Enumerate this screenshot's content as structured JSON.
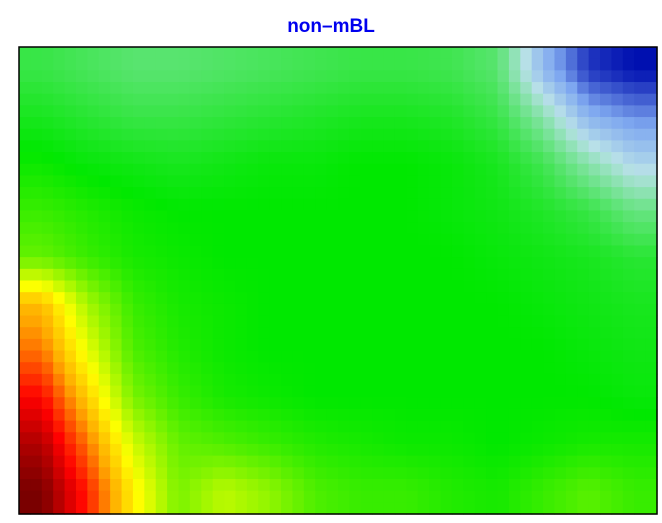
{
  "chart_data": {
    "type": "heatmap",
    "title": "non–mBL",
    "xlabel": "",
    "ylabel": "",
    "grid": false,
    "legend": "none",
    "colormap": {
      "name": "value-scale",
      "stops": [
        {
          "v": 0.0,
          "color": "#7a0000"
        },
        {
          "v": 0.1,
          "color": "#ff0000"
        },
        {
          "v": 0.22,
          "color": "#ffaa00"
        },
        {
          "v": 0.32,
          "color": "#ffff00"
        },
        {
          "v": 0.55,
          "color": "#00e800"
        },
        {
          "v": 0.78,
          "color": "#b8e0e8"
        },
        {
          "v": 0.88,
          "color": "#7fa8f0"
        },
        {
          "v": 1.0,
          "color": "#0010b0"
        }
      ]
    },
    "rows": 10,
    "cols": 14,
    "values": [
      [
        0.62,
        0.64,
        0.66,
        0.66,
        0.65,
        0.64,
        0.63,
        0.62,
        0.62,
        0.63,
        0.66,
        0.85,
        0.97,
        1.0
      ],
      [
        0.58,
        0.6,
        0.62,
        0.62,
        0.61,
        0.6,
        0.59,
        0.58,
        0.58,
        0.59,
        0.62,
        0.72,
        0.86,
        0.9
      ],
      [
        0.54,
        0.56,
        0.57,
        0.58,
        0.57,
        0.56,
        0.56,
        0.55,
        0.55,
        0.56,
        0.58,
        0.63,
        0.72,
        0.8
      ],
      [
        0.5,
        0.52,
        0.54,
        0.55,
        0.55,
        0.55,
        0.55,
        0.55,
        0.55,
        0.56,
        0.57,
        0.59,
        0.62,
        0.68
      ],
      [
        0.46,
        0.5,
        0.53,
        0.54,
        0.55,
        0.55,
        0.55,
        0.55,
        0.55,
        0.55,
        0.56,
        0.57,
        0.58,
        0.6
      ],
      [
        0.24,
        0.4,
        0.5,
        0.53,
        0.54,
        0.55,
        0.55,
        0.55,
        0.55,
        0.55,
        0.55,
        0.56,
        0.57,
        0.58
      ],
      [
        0.18,
        0.34,
        0.48,
        0.52,
        0.54,
        0.55,
        0.55,
        0.55,
        0.55,
        0.55,
        0.55,
        0.55,
        0.56,
        0.57
      ],
      [
        0.1,
        0.26,
        0.44,
        0.5,
        0.53,
        0.54,
        0.55,
        0.55,
        0.55,
        0.55,
        0.55,
        0.55,
        0.55,
        0.56
      ],
      [
        0.04,
        0.18,
        0.36,
        0.46,
        0.48,
        0.5,
        0.52,
        0.53,
        0.54,
        0.54,
        0.55,
        0.54,
        0.53,
        0.53
      ],
      [
        0.0,
        0.12,
        0.3,
        0.44,
        0.38,
        0.42,
        0.48,
        0.5,
        0.5,
        0.52,
        0.53,
        0.5,
        0.47,
        0.5
      ]
    ]
  }
}
